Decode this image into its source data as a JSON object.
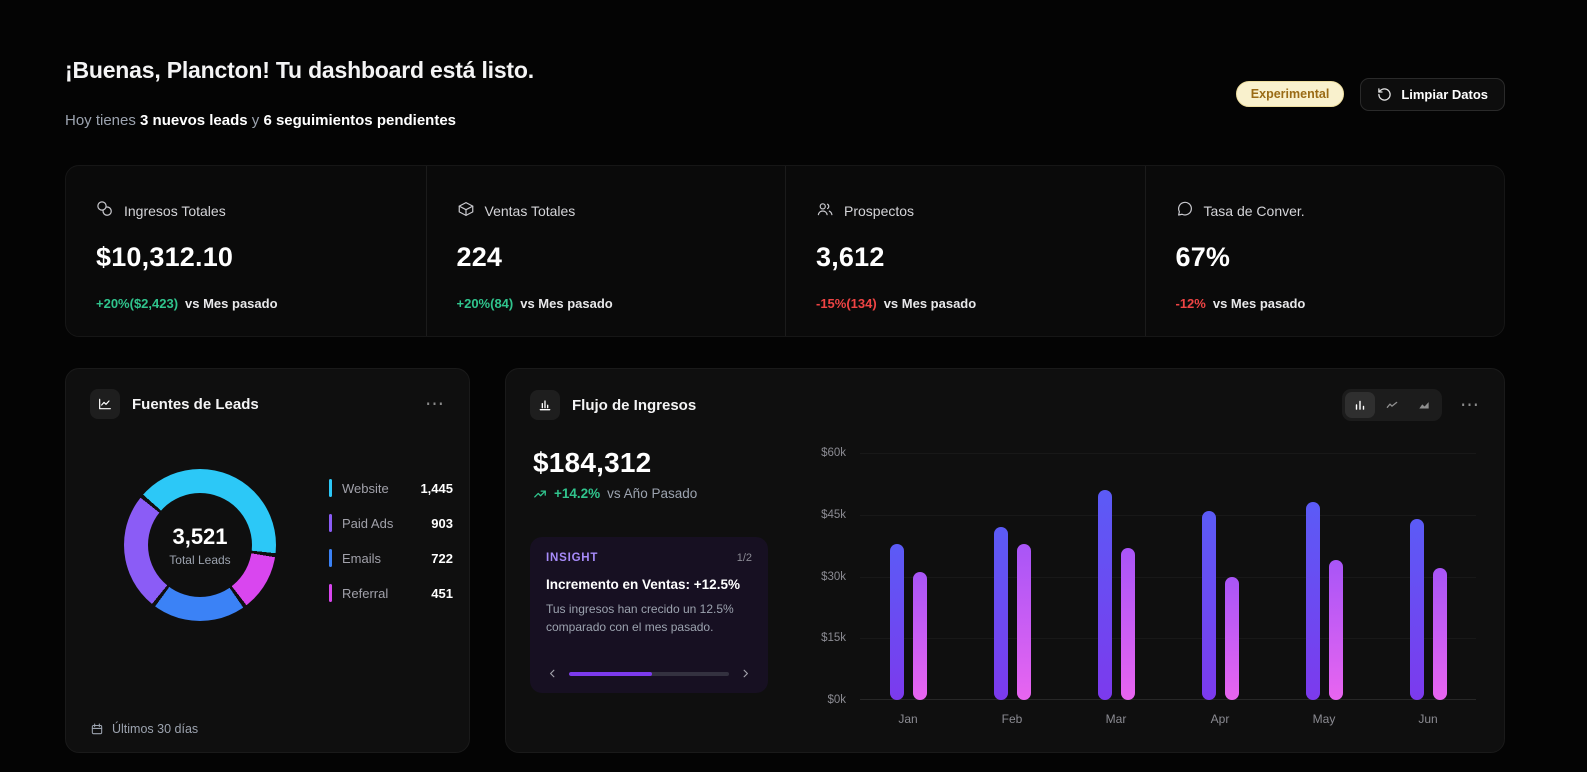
{
  "page": {
    "title": "¡Buenas, Plancton! Tu dashboard está listo.",
    "subtitle": {
      "prefix": "Hoy tienes ",
      "highlight1": "3 nuevos leads",
      "middle": " y ",
      "highlight2": "6 seguimientos pendientes"
    }
  },
  "header": {
    "experimental_badge": "Experimental",
    "clear_data_label": "Limpiar Datos"
  },
  "stats": [
    {
      "label": "Ingresos Totales",
      "value": "$10,312.10",
      "change": "+20%($2,423)",
      "direction": "up",
      "suffix": "vs Mes pasado",
      "icon": "coins-icon"
    },
    {
      "label": "Ventas Totales",
      "value": "224",
      "change": "+20%(84)",
      "direction": "up",
      "suffix": "vs Mes pasado",
      "icon": "package-icon"
    },
    {
      "label": "Prospectos",
      "value": "3,612",
      "change": "-15%(134)",
      "direction": "down",
      "suffix": "vs Mes pasado",
      "icon": "users-icon"
    },
    {
      "label": "Tasa de Conver.",
      "value": "67%",
      "change": "-12%",
      "direction": "down",
      "suffix": "vs Mes pasado",
      "icon": "chat-bubble-icon"
    }
  ],
  "leads_card": {
    "title": "Fuentes de Leads",
    "menu_icon": "⋯",
    "total_value": "3,521",
    "total_label": "Total Leads",
    "footer_label": "Últimos 30 días",
    "legend": [
      {
        "label": "Website",
        "value": "1,445"
      },
      {
        "label": "Paid Ads",
        "value": "903"
      },
      {
        "label": "Emails",
        "value": "722"
      },
      {
        "label": "Referral",
        "value": "451"
      }
    ]
  },
  "revenue_card": {
    "title": "Flujo de Ingresos",
    "menu_icon": "⋯",
    "amount": "$184,312",
    "trend": "+14.2%",
    "trend_suffix": "vs Año Pasado",
    "insight": {
      "label": "INSIGHT",
      "pagination": "1/2",
      "headline": "Incremento en Ventas: +12.5%",
      "body": "Tus ingresos han crecido un 12.5% comparado con el mes pasado.",
      "progress_percent": 52
    }
  },
  "colors": {
    "positive": "#30c48d",
    "negative": "#ef4444",
    "accent_purple": "#7c3aed",
    "insight_bg": "#171022"
  },
  "chart_data": [
    {
      "type": "pie",
      "title": "Fuentes de Leads",
      "labels": [
        "Website",
        "Paid Ads",
        "Emails",
        "Referral"
      ],
      "values": [
        1445,
        903,
        722,
        451
      ],
      "colors": [
        "#2cc8f7",
        "#8b5cf6",
        "#3b82f6",
        "#d946ef"
      ],
      "total": 3521,
      "center_label": "Total Leads",
      "donut": true,
      "start_angle_deg": -50,
      "draw_order_clockwise": [
        "Website",
        "Referral",
        "Emails",
        "Paid Ads"
      ]
    },
    {
      "type": "bar",
      "title": "Flujo de Ingresos",
      "categories": [
        "Jan",
        "Feb",
        "Mar",
        "Apr",
        "May",
        "Jun"
      ],
      "series": [
        {
          "name": "primary",
          "values": [
            38000,
            42000,
            51000,
            46000,
            48000,
            44000
          ],
          "gradient": [
            "#5b5bf6",
            "#7c3aed"
          ]
        },
        {
          "name": "secondary",
          "values": [
            31000,
            38000,
            37000,
            30000,
            34000,
            32000
          ],
          "gradient": [
            "#a855f7",
            "#e865f0"
          ]
        }
      ],
      "ylim": [
        0,
        60000
      ],
      "yticks": [
        "$60k",
        "$45k",
        "$30k",
        "$15k",
        "$0k"
      ],
      "grid": "faint-horizontal",
      "legend_position": "none"
    }
  ]
}
